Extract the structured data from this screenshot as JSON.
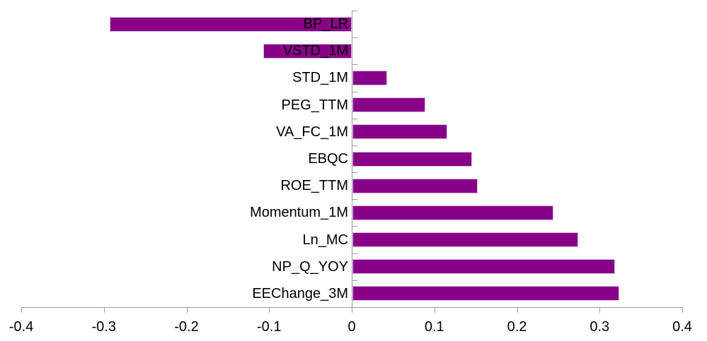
{
  "chart_data": {
    "type": "bar",
    "orientation": "horizontal",
    "title": "",
    "xlabel": "",
    "ylabel": "",
    "categories": [
      "BP_LR",
      "VSTD_1M",
      "STD_1M",
      "PEG_TTM",
      "VA_FC_1M",
      "EBQC",
      "ROE_TTM",
      "Momentum_1M",
      "Ln_MC",
      "NP_Q_YOY",
      "EEChange_3M"
    ],
    "values": [
      -0.293,
      -0.107,
      0.042,
      0.088,
      0.115,
      0.145,
      0.152,
      0.243,
      0.273,
      0.318,
      0.323
    ],
    "xlim": [
      -0.4,
      0.4
    ],
    "xticks": [
      -0.4,
      -0.3,
      -0.2,
      -0.1,
      0,
      0.1,
      0.2,
      0.3,
      0.4
    ],
    "xtick_labels": [
      "-0.4",
      "-0.3",
      "-0.2",
      "-0.1",
      "0",
      "0.1",
      "0.2",
      "0.3",
      "0.4"
    ],
    "grid": false,
    "legend": "none",
    "bar_color": "#870087",
    "bar_border_color": "#d4c2e2",
    "axis_color": "#9a9a9a",
    "text_color": "#000000"
  }
}
